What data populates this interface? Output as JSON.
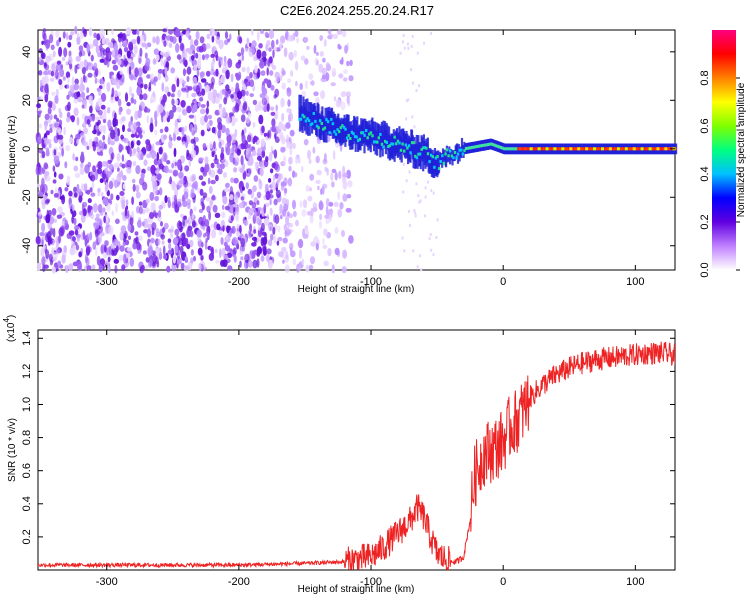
{
  "title": "C2E6.2024.255.20.24.R17",
  "chart_data": [
    {
      "type": "heatmap",
      "xlabel": "Height of straight line (km)",
      "ylabel": "Frequency (Hz)",
      "xlim": [
        -352,
        130
      ],
      "ylim": [
        -50,
        49
      ],
      "xticks": [
        -300,
        -200,
        -100,
        0,
        100
      ],
      "yticks": [
        -40,
        -20,
        0,
        20,
        40
      ],
      "grid": false,
      "description_values": {
        "noise_region_x": [
          -352,
          -140
        ],
        "signal_track": {
          "x": [
            -155,
            -140,
            -120,
            -100,
            -80,
            -60,
            -50,
            -40,
            -30,
            -20,
            -10,
            0,
            20,
            50,
            80,
            110,
            130
          ],
          "y": [
            15,
            11,
            7,
            5,
            2,
            -2,
            -6,
            -2,
            0,
            1,
            2,
            0,
            0,
            0,
            0,
            0,
            0
          ]
        }
      },
      "colorbar": {
        "label": "Normalized spectral amplitude",
        "range": [
          0,
          1
        ],
        "ticks": [
          "0.0",
          "0.2",
          "0.4",
          "0.6",
          "0.8"
        ],
        "colors": [
          "#ffffff",
          "#c080ff",
          "#6000e0",
          "#0000ff",
          "#00c0ff",
          "#00ff80",
          "#80ff00",
          "#ffff00",
          "#ff8000",
          "#ff0000",
          "#ff0080"
        ]
      }
    },
    {
      "type": "line",
      "xlabel": "Height of straight line (km)",
      "ylabel": "SNR (10 * v/v)",
      "y_multiplier": "(x10",
      "y_multiplier_exp": "4",
      "y_multiplier_close": ")",
      "xlim": [
        -352,
        130
      ],
      "ylim": [
        0,
        1.45
      ],
      "xticks": [
        -300,
        -200,
        -100,
        0,
        100
      ],
      "yticks": [
        0.2,
        0.4,
        0.6,
        0.8,
        1.0,
        1.2,
        1.4
      ],
      "yticklabels": [
        "0.2",
        "0.4",
        "0.6",
        "0.8",
        "1.0",
        "1.2",
        "1.4"
      ],
      "grid": false,
      "series": [
        {
          "color": "#ee2222",
          "x": [
            -352,
            -300,
            -250,
            -200,
            -150,
            -120,
            -100,
            -90,
            -80,
            -70,
            -65,
            -60,
            -55,
            -50,
            -45,
            -40,
            -35,
            -30,
            -25,
            -22,
            -20,
            -15,
            -10,
            -5,
            0,
            5,
            10,
            15,
            20,
            30,
            40,
            50,
            60,
            70,
            80,
            90,
            100,
            110,
            120,
            130
          ],
          "y": [
            0.03,
            0.03,
            0.03,
            0.03,
            0.04,
            0.05,
            0.08,
            0.14,
            0.22,
            0.3,
            0.38,
            0.32,
            0.2,
            0.1,
            0.07,
            0.05,
            0.05,
            0.08,
            0.3,
            0.55,
            0.6,
            0.7,
            0.72,
            0.74,
            0.78,
            0.86,
            0.9,
            0.96,
            1.04,
            1.12,
            1.18,
            1.22,
            1.25,
            1.27,
            1.28,
            1.29,
            1.3,
            1.31,
            1.31,
            1.3
          ]
        }
      ]
    }
  ]
}
